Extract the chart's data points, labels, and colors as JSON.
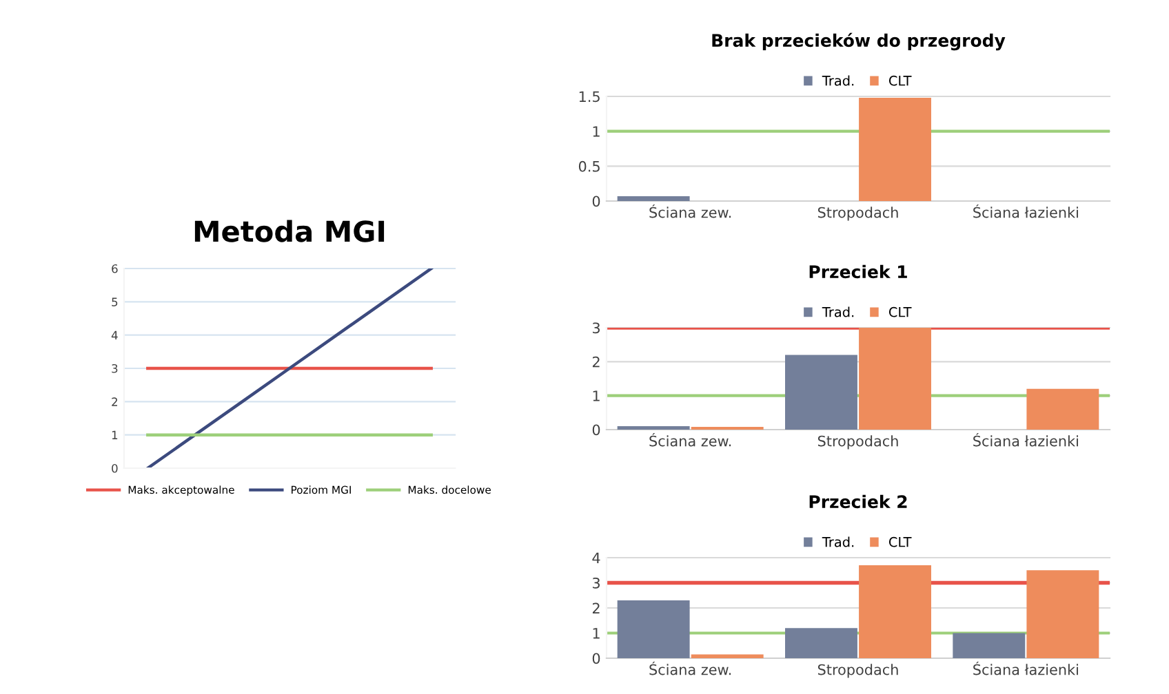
{
  "chart_data": [
    {
      "type": "line",
      "title": "Metoda MGI",
      "categories": [
        null,
        null,
        null,
        null,
        null,
        null,
        null
      ],
      "series": [
        {
          "name": "Maks. akceptowalne",
          "color": "#e8534a",
          "values": [
            3,
            3,
            3,
            3,
            3,
            3,
            3
          ]
        },
        {
          "name": "Poziom MGI",
          "color": "#3c4a7e",
          "values": [
            0,
            1,
            2,
            3,
            4,
            5,
            6
          ]
        },
        {
          "name": "Maks. docelowe",
          "color": "#9dcf7a",
          "values": [
            1,
            1,
            1,
            1,
            1,
            1,
            1
          ]
        }
      ],
      "ylim": [
        0,
        6
      ],
      "yticks": [
        0,
        1,
        2,
        3,
        4,
        5,
        6
      ],
      "grid": "y",
      "legend": "bottom",
      "tick_labels": "y"
    },
    {
      "type": "bar",
      "title": "Brak przecieków do przegrody",
      "categories": [
        "Ściana zew.",
        "Stropodach",
        "Ściana łazienki"
      ],
      "series": [
        {
          "name": "Trad.",
          "color": "#737f9a",
          "values": [
            0.07,
            0,
            0
          ]
        },
        {
          "name": "CLT",
          "color": "#ee8c5c",
          "values": [
            0,
            1.48,
            0
          ]
        }
      ],
      "ylim": [
        0,
        1.5
      ],
      "yticks": [
        0,
        {
          "value": 0.5,
          "label": "0.5"
        },
        1,
        {
          "value": 1.5,
          "label": "1.5"
        }
      ],
      "grid": "y",
      "legend": "top",
      "ref_lines": [
        {
          "axis": "y",
          "value": 1,
          "color": "#9dcf7a"
        }
      ]
    },
    {
      "type": "bar",
      "title": "Przeciek 1",
      "categories": [
        "Ściana zew.",
        "Stropodach",
        "Ściana łazienki"
      ],
      "series": [
        {
          "name": "Trad.",
          "color": "#737f9a",
          "values": [
            0.1,
            2.2,
            0
          ]
        },
        {
          "name": "CLT",
          "color": "#ee8c5c",
          "values": [
            0.08,
            3.0,
            1.2
          ]
        }
      ],
      "ylim": [
        0,
        3
      ],
      "yticks": [
        0,
        1,
        2,
        3
      ],
      "grid": "y",
      "legend": "top",
      "ref_lines": [
        {
          "axis": "y",
          "value": 1,
          "color": "#9dcf7a"
        },
        {
          "axis": "y",
          "value": 3,
          "color": "#e8534a"
        }
      ]
    },
    {
      "type": "bar",
      "title": "Przeciek 2",
      "categories": [
        "Ściana zew.",
        "Stropodach",
        "Ściana łazienki"
      ],
      "series": [
        {
          "name": "Trad.",
          "color": "#737f9a",
          "values": [
            2.3,
            1.2,
            1.0
          ]
        },
        {
          "name": "CLT",
          "color": "#ee8c5c",
          "values": [
            0.15,
            3.7,
            3.5
          ]
        }
      ],
      "ylim": [
        0,
        4
      ],
      "yticks": [
        0,
        1,
        2,
        3,
        4
      ],
      "grid": "y",
      "legend": "top",
      "ref_lines": [
        {
          "axis": "y",
          "value": 1,
          "color": "#9dcf7a"
        },
        {
          "axis": "y",
          "value": 3,
          "color": "#e8534a"
        }
      ]
    }
  ]
}
